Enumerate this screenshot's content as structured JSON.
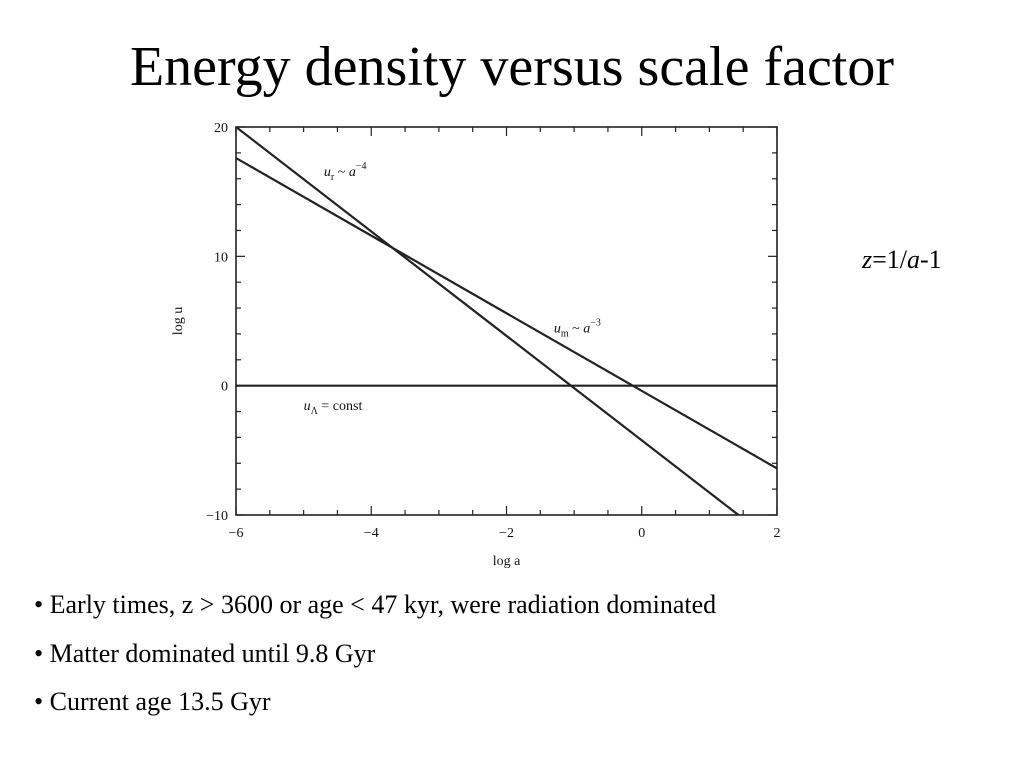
{
  "slide": {
    "title": "Energy density versus scale factor",
    "formula": {
      "z": "z",
      "eq": "=1/",
      "a": "a",
      "minus": "-1"
    },
    "bullets": [
      "Early times, z > 3600 or age < 47 kyr, were radiation dominated",
      "Matter dominated until 9.8 Gyr",
      "Current age 13.5 Gyr"
    ]
  },
  "chart_data": {
    "type": "line",
    "xlabel": "log a",
    "ylabel": "log u",
    "xlim": [
      -6,
      2
    ],
    "ylim": [
      -10,
      20
    ],
    "xticks": [
      -6,
      -4,
      -2,
      0,
      2
    ],
    "yticks": [
      -10,
      0,
      10,
      20
    ],
    "xtick_labels": [
      "−6",
      "−4",
      "−2",
      "0",
      "2"
    ],
    "ytick_labels": [
      "−10",
      "0",
      "10",
      "20"
    ],
    "grid": false,
    "series": [
      {
        "name": "u_r ~ a^-4",
        "x": [
          -6,
          1.43
        ],
        "y": [
          20,
          -10
        ]
      },
      {
        "name": "u_m ~ a^-3",
        "x": [
          -6,
          2
        ],
        "y": [
          17.6,
          -6.4
        ]
      },
      {
        "name": "u_Λ = const",
        "x": [
          -6,
          2
        ],
        "y": [
          0,
          0
        ]
      }
    ],
    "annotations": [
      {
        "base": "u",
        "sub": "r",
        "mid": " ~ a",
        "sup": "−4",
        "x": -4.7,
        "y": 16.2
      },
      {
        "base": "u",
        "sub": "m",
        "mid": " ~ a",
        "sup": "−3",
        "x": -1.3,
        "y": 4.1
      },
      {
        "base": "u",
        "sub": "Λ",
        "mid": " = const",
        "sup": "",
        "x": -5.0,
        "y": -1.9
      }
    ]
  }
}
